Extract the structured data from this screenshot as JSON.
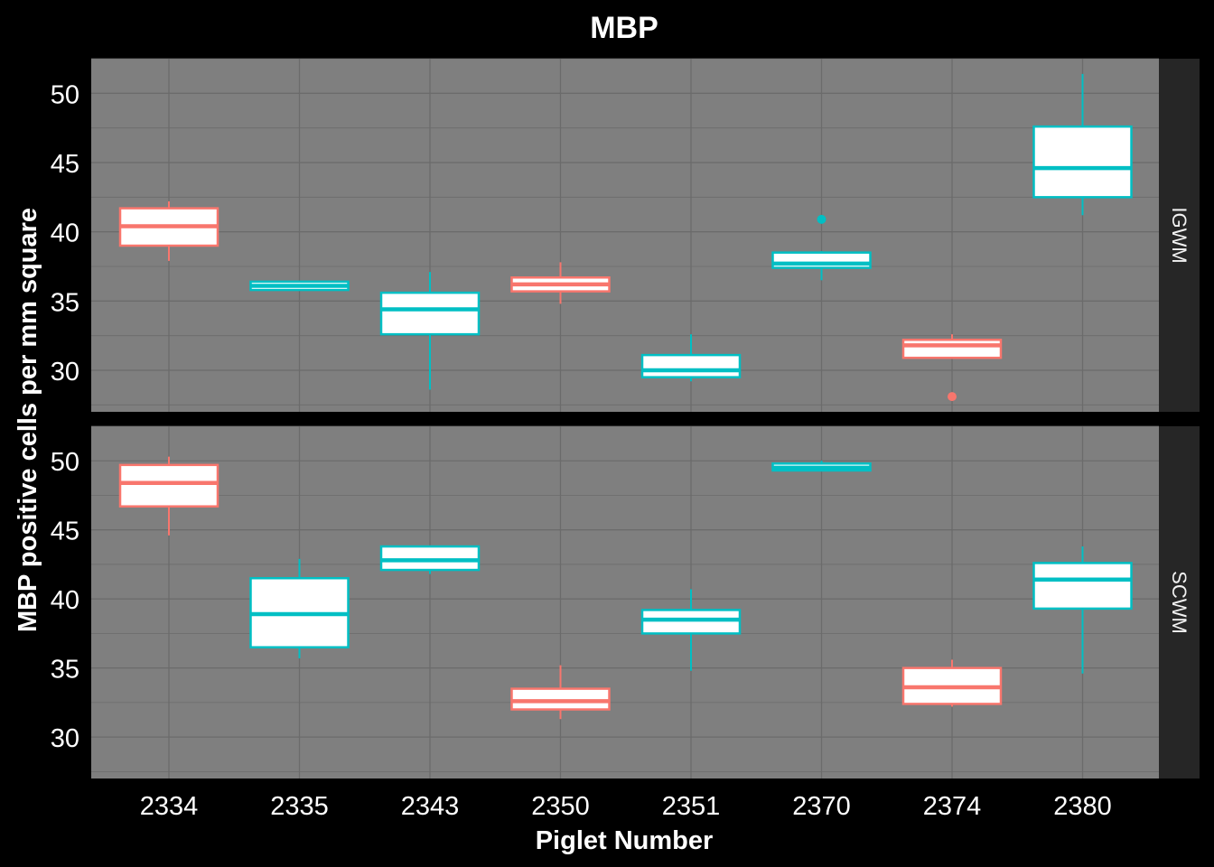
{
  "chart_data": {
    "type": "boxplot",
    "title": "MBP",
    "xlabel": "Piglet Number",
    "ylabel": "MBP positive cells per mm square",
    "categories": [
      "2334",
      "2335",
      "2343",
      "2350",
      "2351",
      "2370",
      "2374",
      "2380"
    ],
    "ylim": [
      27,
      52.5
    ],
    "yticks": [
      30,
      35,
      40,
      45,
      50
    ],
    "colors": {
      "red": "#F8766D",
      "teal": "#00BFC4",
      "panel": "#7F7F7F",
      "grid": "#6B6B6B",
      "strip": "#262626",
      "background": "#000000"
    },
    "category_colors": [
      "red",
      "teal",
      "teal",
      "red",
      "teal",
      "teal",
      "red",
      "teal"
    ],
    "panels": [
      {
        "label": "IGWM",
        "boxes": [
          {
            "x": "2334",
            "whisker_low": 37.9,
            "q1": 39.0,
            "median": 40.4,
            "q3": 41.7,
            "whisker_high": 42.2,
            "outliers": []
          },
          {
            "x": "2335",
            "whisker_low": 35.8,
            "q1": 35.8,
            "median": 36.1,
            "q3": 36.4,
            "whisker_high": 36.4,
            "outliers": []
          },
          {
            "x": "2343",
            "whisker_low": 28.6,
            "q1": 32.6,
            "median": 34.4,
            "q3": 35.6,
            "whisker_high": 37.1,
            "outliers": []
          },
          {
            "x": "2350",
            "whisker_low": 34.8,
            "q1": 35.7,
            "median": 36.2,
            "q3": 36.7,
            "whisker_high": 37.8,
            "outliers": []
          },
          {
            "x": "2351",
            "whisker_low": 29.2,
            "q1": 29.5,
            "median": 30.0,
            "q3": 31.1,
            "whisker_high": 32.6,
            "outliers": []
          },
          {
            "x": "2370",
            "whisker_low": 36.5,
            "q1": 37.4,
            "median": 37.7,
            "q3": 38.5,
            "whisker_high": 38.6,
            "outliers": [
              40.9
            ]
          },
          {
            "x": "2374",
            "whisker_low": 30.9,
            "q1": 30.9,
            "median": 31.8,
            "q3": 32.2,
            "whisker_high": 32.6,
            "outliers": [
              28.1
            ]
          },
          {
            "x": "2380",
            "whisker_low": 41.2,
            "q1": 42.5,
            "median": 44.6,
            "q3": 47.6,
            "whisker_high": 51.4,
            "outliers": []
          }
        ]
      },
      {
        "label": "SCWM",
        "boxes": [
          {
            "x": "2334",
            "whisker_low": 44.6,
            "q1": 46.7,
            "median": 48.4,
            "q3": 49.7,
            "whisker_high": 50.3,
            "outliers": []
          },
          {
            "x": "2335",
            "whisker_low": 35.7,
            "q1": 36.5,
            "median": 38.9,
            "q3": 41.5,
            "whisker_high": 42.9,
            "outliers": []
          },
          {
            "x": "2343",
            "whisker_low": 41.8,
            "q1": 42.1,
            "median": 42.8,
            "q3": 43.8,
            "whisker_high": 43.8,
            "outliers": []
          },
          {
            "x": "2350",
            "whisker_low": 31.3,
            "q1": 32.0,
            "median": 32.6,
            "q3": 33.5,
            "whisker_high": 35.2,
            "outliers": []
          },
          {
            "x": "2351",
            "whisker_low": 34.8,
            "q1": 37.5,
            "median": 38.5,
            "q3": 39.2,
            "whisker_high": 40.7,
            "outliers": []
          },
          {
            "x": "2370",
            "whisker_low": 49.3,
            "q1": 49.3,
            "median": 49.5,
            "q3": 49.8,
            "whisker_high": 50.0,
            "outliers": []
          },
          {
            "x": "2374",
            "whisker_low": 32.2,
            "q1": 32.4,
            "median": 33.6,
            "q3": 35.0,
            "whisker_high": 35.6,
            "outliers": []
          },
          {
            "x": "2380",
            "whisker_low": 34.6,
            "q1": 39.3,
            "median": 41.4,
            "q3": 42.6,
            "whisker_high": 43.8,
            "outliers": []
          }
        ]
      }
    ],
    "grid": true,
    "legend": "none"
  }
}
